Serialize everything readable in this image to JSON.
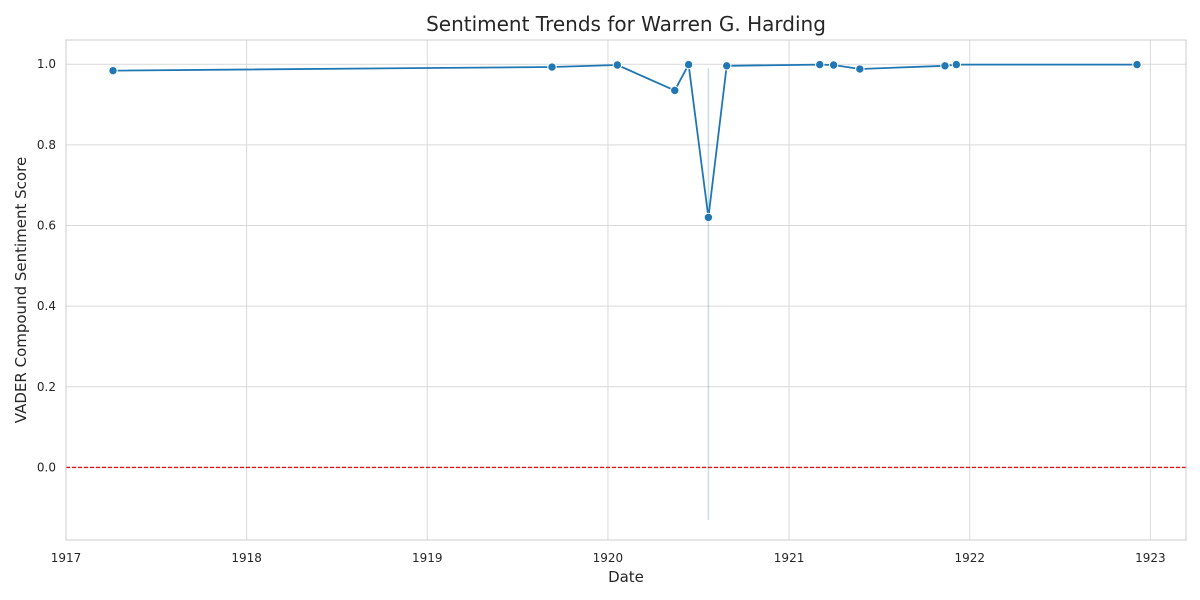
{
  "chart_data": {
    "type": "line",
    "title": "Sentiment Trends for Warren G. Harding",
    "xlabel": "Date",
    "ylabel": "VADER Compound Sentiment Score",
    "x_ticks": [
      "1917",
      "1918",
      "1919",
      "1920",
      "1921",
      "1922",
      "1923"
    ],
    "y_ticks": [
      "0.0",
      "0.2",
      "0.4",
      "0.6",
      "0.8",
      "1.0"
    ],
    "xlim": [
      "1917-01-01",
      "1923-03-14"
    ],
    "ylim": [
      -0.18,
      1.06
    ],
    "grid": true,
    "legend": "none",
    "series": [
      {
        "color": "#1f77b4",
        "marker": "circle",
        "points": [
          {
            "x": "1917-04-06",
            "y": 0.984
          },
          {
            "x": "1919-09-10",
            "y": 0.993
          },
          {
            "x": "1920-01-20",
            "y": 0.998
          },
          {
            "x": "1920-05-15",
            "y": 0.935
          },
          {
            "x": "1920-06-12",
            "y": 0.999
          },
          {
            "x": "1920-07-22",
            "y": 0.62
          },
          {
            "x": "1920-08-28",
            "y": 0.996
          },
          {
            "x": "1921-03-04",
            "y": 0.999
          },
          {
            "x": "1921-04-01",
            "y": 0.998
          },
          {
            "x": "1921-05-24",
            "y": 0.988
          },
          {
            "x": "1921-11-12",
            "y": 0.996
          },
          {
            "x": "1921-12-05",
            "y": 0.999
          },
          {
            "x": "1922-12-05",
            "y": 0.999
          }
        ],
        "error_band": {
          "x": "1920-07-22",
          "low": -0.13,
          "high": 0.99
        }
      }
    ],
    "reference_line": {
      "y": 0.0,
      "color": "#e31a1c",
      "style": "dashed"
    }
  }
}
